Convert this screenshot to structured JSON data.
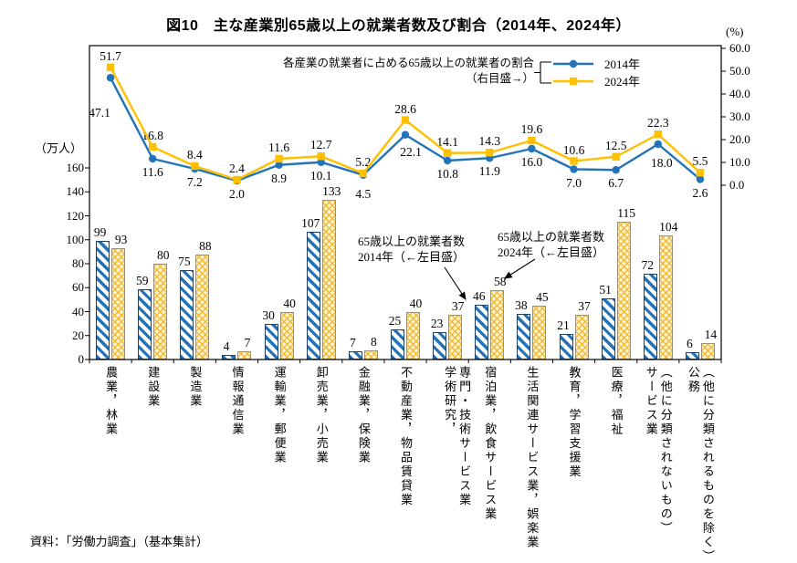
{
  "title": "図10　主な産業別65歳以上の就業者数及び割合（2014年、2024年）",
  "source_note": "資料：「労働力調査」（基本集計）",
  "axes": {
    "left_unit": "（万人）",
    "right_unit": "(%)",
    "left_ticks": [
      0,
      20,
      40,
      60,
      80,
      100,
      120,
      140,
      160
    ],
    "right_ticks": [
      0.0,
      10.0,
      20.0,
      30.0,
      40.0,
      50.0,
      60.0
    ]
  },
  "legend": {
    "caption_line1": "各産業の就業者に占める65歳以上の就業者の割合",
    "caption_line2": "（右目盛→）",
    "items": [
      {
        "label": "2014年",
        "color": "#2273B8",
        "marker": "circle"
      },
      {
        "label": "2024年",
        "color": "#FFC000",
        "marker": "square"
      }
    ]
  },
  "annotations": [
    {
      "line1": "65歳以上の就業者数",
      "line2": "2014年（←左目盛）"
    },
    {
      "line1": "65歳以上の就業者数",
      "line2": "2024年（←左目盛）"
    }
  ],
  "colors": {
    "series_2014": "#2273B8",
    "series_2024": "#FFC000",
    "bar_2014_stripe": "#2273B8",
    "bar_2014_border": "#1F4164",
    "bar_2024_fill": "#FDF2CE",
    "bar_2024_lattice": "#F0B323",
    "axis": "#000000"
  },
  "chart_data": {
    "type": "bar+line",
    "title": "図10　主な産業別65歳以上の就業者数及び割合（2014年、2024年）",
    "categories": [
      "農業，林業",
      "建設業",
      "製造業",
      "情報通信業",
      "運輸業，郵便業",
      "卸売業，小売業",
      "金融業，保険業",
      "不動産業，物品賃貸業",
      "学術研究，専門・技術サービス業",
      "宿泊業，飲食サービス業",
      "生活関連サービス業，娯楽業",
      "教育，学習支援業",
      "医療，福祉",
      "サービス業（他に分類されないもの）",
      "公務（他に分類されるものを除く）"
    ],
    "category_label_columns": [
      [
        "農業，林業"
      ],
      [
        "建設業"
      ],
      [
        "製造業"
      ],
      [
        "情報通信業"
      ],
      [
        "運輸業，郵便業"
      ],
      [
        "卸売業，小売業"
      ],
      [
        "金融業，保険業"
      ],
      [
        "不動産業，物品賃貸業"
      ],
      [
        "学術研究，",
        "専門・技術サービス業"
      ],
      [
        "宿泊業，飲食サービス業"
      ],
      [
        "生活関連サービス業，娯楽業"
      ],
      [
        "教育，学習支援業"
      ],
      [
        "医療，福祉"
      ],
      [
        "サービス業",
        "（他に分類されないもの）"
      ],
      [
        "公務",
        "（他に分類されるものを除く）"
      ]
    ],
    "bar_series": [
      {
        "name": "65歳以上の就業者数 2014年（左目盛）",
        "unit": "万人",
        "values": [
          99,
          59,
          75,
          4,
          30,
          107,
          7,
          25,
          23,
          46,
          38,
          21,
          51,
          72,
          6
        ]
      },
      {
        "name": "65歳以上の就業者数 2024年（左目盛）",
        "unit": "万人",
        "values": [
          93,
          80,
          88,
          7,
          40,
          133,
          8,
          40,
          37,
          58,
          45,
          37,
          115,
          104,
          14
        ]
      }
    ],
    "line_series": [
      {
        "name": "各産業の就業者に占める65歳以上の就業者の割合 2014年（右目盛）",
        "unit": "%",
        "values": [
          47.1,
          11.6,
          7.2,
          2.0,
          8.9,
          10.1,
          4.5,
          22.1,
          10.8,
          11.9,
          16.0,
          7.0,
          6.7,
          18.0,
          2.6
        ]
      },
      {
        "name": "各産業の就業者に占める65歳以上の就業者の割合 2024年（右目盛）",
        "unit": "%",
        "values": [
          51.7,
          16.8,
          8.4,
          2.4,
          11.6,
          12.7,
          5.2,
          28.6,
          14.1,
          14.3,
          19.6,
          10.6,
          12.5,
          22.3,
          5.5
        ]
      }
    ],
    "left_ylim": [
      0,
      160
    ],
    "right_ylim": [
      0,
      60
    ],
    "grid": false,
    "legend_position": "top-right"
  }
}
